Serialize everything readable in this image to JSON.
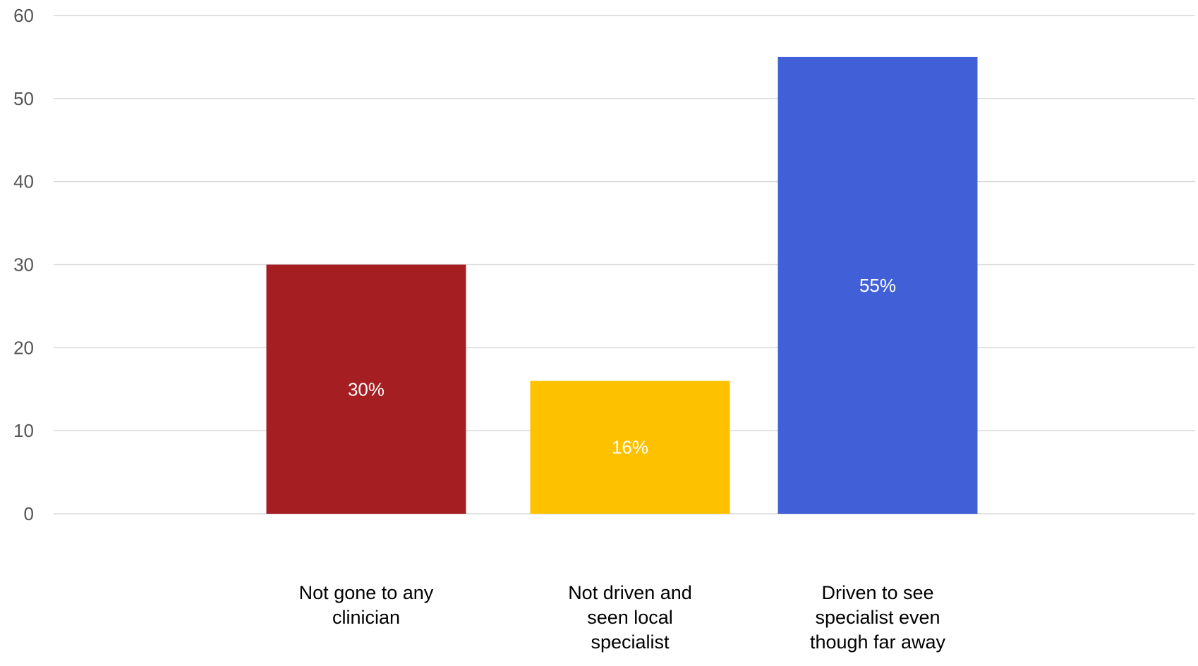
{
  "chart_data": {
    "type": "bar",
    "categories": [
      [
        "Not gone to any",
        "clinician"
      ],
      [
        "Not driven and",
        "seen local",
        "specialist"
      ],
      [
        "Driven to see",
        "specialist even",
        "though far away"
      ]
    ],
    "values": [
      30,
      16,
      55
    ],
    "data_labels": [
      "30%",
      "16%",
      "55%"
    ],
    "colors": [
      "#a51f22",
      "#fec100",
      "#4160d7"
    ],
    "yticks": [
      "0",
      "10",
      "20",
      "30",
      "40",
      "50",
      "60"
    ],
    "ylim": [
      0,
      60
    ],
    "grid": true,
    "title": "",
    "xlabel": "",
    "ylabel": ""
  }
}
